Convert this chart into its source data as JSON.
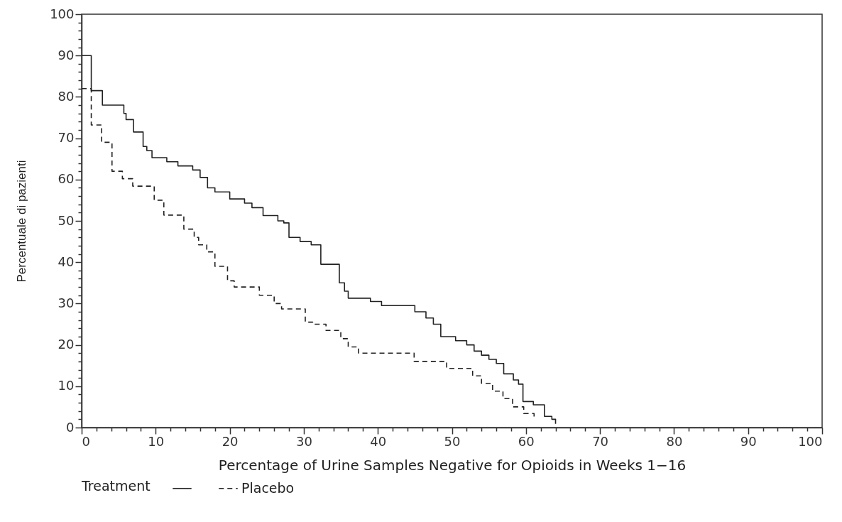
{
  "chart_data": {
    "type": "step",
    "xlabel": "Percentage of Urine Samples Negative for Opioids in Weeks 1−16",
    "ylabel": "Percentuale di pazienti",
    "legend_title": "Treatment",
    "legend": "bottom",
    "grid": false,
    "xlim": [
      0,
      100
    ],
    "ylim": [
      0,
      100
    ],
    "xticks": [
      0,
      {
        "value": 2,
        "label": null
      },
      {
        "value": 4,
        "label": null
      },
      {
        "value": 6,
        "label": null
      },
      {
        "value": 8,
        "label": null
      },
      10,
      {
        "value": 12,
        "label": null
      },
      {
        "value": 14,
        "label": null
      },
      {
        "value": 16,
        "label": null
      },
      {
        "value": 18,
        "label": null
      },
      20,
      {
        "value": 22,
        "label": null
      },
      {
        "value": 24,
        "label": null
      },
      {
        "value": 26,
        "label": null
      },
      {
        "value": 28,
        "label": null
      },
      30,
      {
        "value": 32,
        "label": null
      },
      {
        "value": 34,
        "label": null
      },
      {
        "value": 36,
        "label": null
      },
      {
        "value": 38,
        "label": null
      },
      40,
      {
        "value": 42,
        "label": null
      },
      {
        "value": 44,
        "label": null
      },
      {
        "value": 46,
        "label": null
      },
      {
        "value": 48,
        "label": null
      },
      50,
      {
        "value": 52,
        "label": null
      },
      {
        "value": 54,
        "label": null
      },
      {
        "value": 56,
        "label": null
      },
      {
        "value": 58,
        "label": null
      },
      60,
      {
        "value": 62,
        "label": null
      },
      {
        "value": 64,
        "label": null
      },
      {
        "value": 66,
        "label": null
      },
      {
        "value": 68,
        "label": null
      },
      70,
      {
        "value": 72,
        "label": null
      },
      {
        "value": 74,
        "label": null
      },
      {
        "value": 76,
        "label": null
      },
      {
        "value": 78,
        "label": null
      },
      80,
      {
        "value": 82,
        "label": null
      },
      {
        "value": 84,
        "label": null
      },
      {
        "value": 86,
        "label": null
      },
      {
        "value": 88,
        "label": null
      },
      90,
      {
        "value": 92,
        "label": null
      },
      {
        "value": 94,
        "label": null
      },
      {
        "value": 96,
        "label": null
      },
      {
        "value": 98,
        "label": null
      },
      100
    ],
    "yticks": [
      0,
      {
        "value": 2,
        "label": null
      },
      {
        "value": 4,
        "label": null
      },
      {
        "value": 6,
        "label": null
      },
      {
        "value": 8,
        "label": null
      },
      10,
      {
        "value": 12,
        "label": null
      },
      {
        "value": 14,
        "label": null
      },
      {
        "value": 16,
        "label": null
      },
      {
        "value": 18,
        "label": null
      },
      20,
      {
        "value": 22,
        "label": null
      },
      {
        "value": 24,
        "label": null
      },
      {
        "value": 26,
        "label": null
      },
      {
        "value": 28,
        "label": null
      },
      30,
      {
        "value": 32,
        "label": null
      },
      {
        "value": 34,
        "label": null
      },
      {
        "value": 36,
        "label": null
      },
      {
        "value": 38,
        "label": null
      },
      40,
      {
        "value": 42,
        "label": null
      },
      {
        "value": 44,
        "label": null
      },
      {
        "value": 46,
        "label": null
      },
      {
        "value": 48,
        "label": null
      },
      50,
      {
        "value": 52,
        "label": null
      },
      {
        "value": 54,
        "label": null
      },
      {
        "value": 56,
        "label": null
      },
      {
        "value": 58,
        "label": null
      },
      60,
      {
        "value": 62,
        "label": null
      },
      {
        "value": 64,
        "label": null
      },
      {
        "value": 66,
        "label": null
      },
      {
        "value": 68,
        "label": null
      },
      70,
      {
        "value": 72,
        "label": null
      },
      {
        "value": 74,
        "label": null
      },
      {
        "value": 76,
        "label": null
      },
      {
        "value": 78,
        "label": null
      },
      80,
      {
        "value": 82,
        "label": null
      },
      {
        "value": 84,
        "label": null
      },
      {
        "value": 86,
        "label": null
      },
      {
        "value": 88,
        "label": null
      },
      90,
      {
        "value": 92,
        "label": null
      },
      {
        "value": 94,
        "label": null
      },
      {
        "value": 96,
        "label": null
      },
      {
        "value": 98,
        "label": null
      },
      100
    ],
    "series": [
      {
        "color": "#222222",
        "line_style": "solid",
        "x": [
          0,
          1.3,
          2.8,
          5.7,
          6,
          7,
          8.3,
          8.8,
          9.5,
          11.5,
          13,
          15,
          16,
          17,
          18,
          20,
          22,
          23,
          24.5,
          26.5,
          27.3,
          28,
          29.5,
          31,
          32.3,
          34.8,
          35.5,
          36,
          39,
          40.5,
          45,
          46.5,
          47.5,
          48.5,
          50.5,
          52,
          53,
          54,
          55,
          56,
          57,
          58.3,
          59,
          59.6,
          61,
          62.5,
          63.5,
          64
        ],
        "values": [
          90,
          81.5,
          78,
          76,
          74.5,
          71.5,
          68,
          67,
          65.3,
          64.3,
          63.3,
          62.3,
          60.5,
          58,
          57,
          55.3,
          54.3,
          53.2,
          51.3,
          50,
          49.5,
          46,
          45,
          44.2,
          39.5,
          35,
          33,
          31.3,
          30.5,
          29.5,
          28,
          26.5,
          25,
          22,
          21,
          20,
          18.5,
          17.5,
          16.5,
          15.5,
          13,
          11.5,
          10.5,
          6.3,
          5.5,
          2.7,
          2,
          0.9
        ]
      },
      {
        "name": "Placebo",
        "color": "#222222",
        "line_style": "dashed",
        "x": [
          0,
          1.3,
          2.7,
          4.1,
          5.5,
          6.9,
          9.8,
          11.1,
          13.8,
          15.2,
          15.8,
          16.9,
          18,
          19.7,
          20.6,
          24,
          26,
          27,
          30.2,
          31.2,
          33,
          35,
          36,
          37.4,
          44.9,
          49.3,
          52.8,
          54,
          55.5,
          56.9,
          58.2,
          59.7,
          61.1
        ],
        "values": [
          82,
          73.2,
          69,
          62,
          60.2,
          58.4,
          55,
          51.4,
          48,
          46,
          44.2,
          42.5,
          39,
          35.5,
          34,
          32,
          30,
          28.7,
          25.5,
          25,
          23.5,
          21.5,
          19.5,
          18,
          16,
          14.3,
          12.5,
          10.7,
          8.8,
          7,
          5,
          3.4,
          2.6
        ]
      }
    ]
  }
}
